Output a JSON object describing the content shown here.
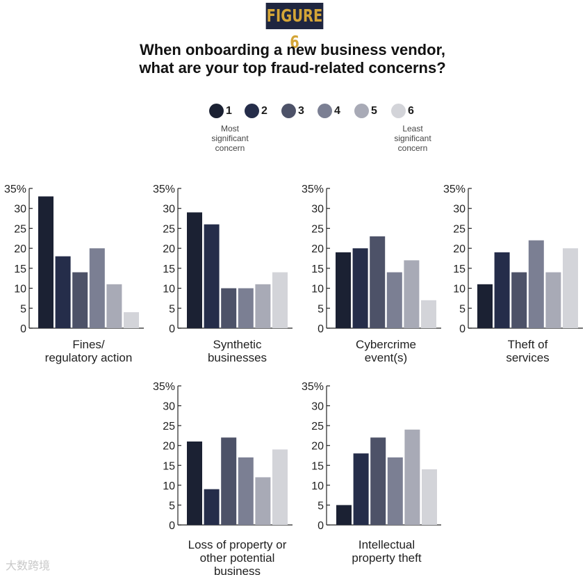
{
  "header": {
    "badge": "FIGURE 6",
    "title_line1": "When onboarding a new business vendor,",
    "title_line2": "what are your top fraud-related concerns?"
  },
  "legend": {
    "items": [
      {
        "label": "1",
        "color": "#1b2133"
      },
      {
        "label": "2",
        "color": "#252d4a"
      },
      {
        "label": "3",
        "color": "#4d5268"
      },
      {
        "label": "4",
        "color": "#7b7f93"
      },
      {
        "label": "5",
        "color": "#a8aab6"
      },
      {
        "label": "6",
        "color": "#d3d4d9"
      }
    ],
    "note_most": [
      "Most",
      "significant",
      "concern"
    ],
    "note_least": [
      "Least",
      "significant",
      "concern"
    ]
  },
  "watermark": "大数跨境",
  "chart_data": [
    {
      "type": "bar",
      "title": "Fines/\nregulatory action",
      "categories": [
        "1",
        "2",
        "3",
        "4",
        "5",
        "6"
      ],
      "values": [
        33,
        18,
        14,
        20,
        11,
        4
      ],
      "ylim": [
        0,
        35
      ],
      "yticks": [
        0,
        5,
        10,
        15,
        20,
        25,
        30,
        35
      ],
      "top_tick_label": "35%"
    },
    {
      "type": "bar",
      "title": "Synthetic\nbusinesses",
      "categories": [
        "1",
        "2",
        "3",
        "4",
        "5",
        "6"
      ],
      "values": [
        29,
        26,
        10,
        10,
        11,
        14
      ],
      "ylim": [
        0,
        35
      ],
      "yticks": [
        0,
        5,
        10,
        15,
        20,
        25,
        30,
        35
      ],
      "top_tick_label": "35%"
    },
    {
      "type": "bar",
      "title": "Cybercrime\nevent(s)",
      "categories": [
        "1",
        "2",
        "3",
        "4",
        "5",
        "6"
      ],
      "values": [
        19,
        20,
        23,
        14,
        17,
        7
      ],
      "ylim": [
        0,
        35
      ],
      "yticks": [
        0,
        5,
        10,
        15,
        20,
        25,
        30,
        35
      ],
      "top_tick_label": "35%"
    },
    {
      "type": "bar",
      "title": "Theft of\nservices",
      "categories": [
        "1",
        "2",
        "3",
        "4",
        "5",
        "6"
      ],
      "values": [
        11,
        19,
        14,
        22,
        14,
        20
      ],
      "ylim": [
        0,
        35
      ],
      "yticks": [
        0,
        5,
        10,
        15,
        20,
        25,
        30,
        35
      ],
      "top_tick_label": "35%"
    },
    {
      "type": "bar",
      "title": "Loss of property or\nother potential\nbusiness",
      "categories": [
        "1",
        "2",
        "3",
        "4",
        "5",
        "6"
      ],
      "values": [
        21,
        9,
        22,
        17,
        12,
        19
      ],
      "ylim": [
        0,
        35
      ],
      "yticks": [
        0,
        5,
        10,
        15,
        20,
        25,
        30,
        35
      ],
      "top_tick_label": "35%"
    },
    {
      "type": "bar",
      "title": "Intellectual\nproperty theft",
      "categories": [
        "1",
        "2",
        "3",
        "4",
        "5",
        "6"
      ],
      "values": [
        5,
        18,
        22,
        17,
        24,
        14
      ],
      "ylim": [
        0,
        35
      ],
      "yticks": [
        0,
        5,
        10,
        15,
        20,
        25,
        30,
        35
      ],
      "top_tick_label": "35%"
    }
  ]
}
